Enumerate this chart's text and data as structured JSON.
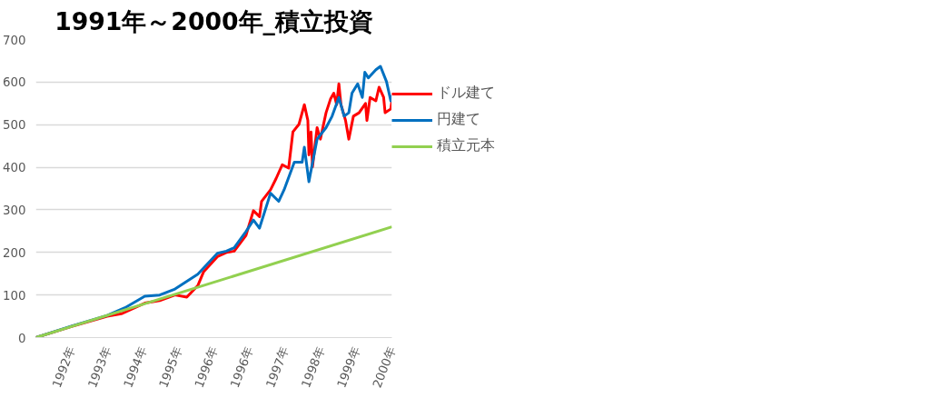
{
  "chart_data": {
    "type": "line",
    "title": "1991年～2000年_積立投資",
    "xlim": [
      "1991-02-06",
      "2000-11-24"
    ],
    "xticks": [
      {
        "value": "1992-01-30",
        "label": "1992年"
      },
      {
        "value": "1993-01-23",
        "label": "1993年"
      },
      {
        "value": "1994-01-16",
        "label": "1994年"
      },
      {
        "value": "1995-01-08",
        "label": "1995年"
      },
      {
        "value": "1996-01-01",
        "label": "1996年"
      },
      {
        "value": "1996-12-24",
        "label": "1996年"
      },
      {
        "value": "1997-12-17",
        "label": "1997年"
      },
      {
        "value": "1998-12-09",
        "label": "1998年"
      },
      {
        "value": "1999-12-02",
        "label": "1999年"
      },
      {
        "value": "2000-11-24",
        "label": "2000年"
      }
    ],
    "ylim": [
      0,
      700
    ],
    "yticks": [
      0,
      100,
      200,
      300,
      400,
      500,
      600,
      700
    ],
    "grid": "y",
    "legend": "right",
    "marker": "none",
    "line_style": "solid",
    "series": [
      {
        "name": "ドル建て",
        "color": "#ff0000",
        "x": [
          "1991-02-06",
          "1992-01-30",
          "1993-01-23",
          "1993-06-14",
          "1994-02-05",
          "1994-07-05",
          "1994-12-06",
          "1995-04-03",
          "1995-07-23",
          "1995-09-18",
          "1996-02-05",
          "1996-05-05",
          "1996-07-23",
          "1996-11-18",
          "1997-02-01",
          "1997-04-03",
          "1997-04-24",
          "1997-07-23",
          "1997-09-18",
          "1997-11-18",
          "1998-01-21",
          "1998-03-05",
          "1998-05-05",
          "1998-06-28",
          "1998-08-02",
          "1998-08-13",
          "1998-09-03",
          "1998-09-18",
          "1998-11-03",
          "1998-12-06",
          "1999-02-01",
          "1999-03-19",
          "1999-04-20",
          "1999-05-19",
          "1999-06-10",
          "1999-07-01",
          "1999-08-16",
          "1999-09-18",
          "1999-11-03",
          "1999-12-30",
          "2000-03-04",
          "2000-03-18",
          "2000-04-19",
          "2000-06-16",
          "2000-07-18",
          "2000-09-02",
          "2000-09-17",
          "2000-11-13",
          "2000-11-24"
        ],
        "values": [
          0,
          26,
          50,
          56,
          81,
          87,
          100,
          95,
          122,
          154,
          190,
          200,
          203,
          240,
          298,
          284,
          320,
          347,
          374,
          406,
          398,
          483,
          501,
          547,
          510,
          429,
          483,
          401,
          493,
          466,
          528,
          561,
          574,
          547,
          596,
          547,
          510,
          466,
          520,
          528,
          550,
          510,
          564,
          556,
          588,
          564,
          528,
          537,
          556
        ]
      },
      {
        "name": "円建て",
        "color": "#0070c0",
        "x": [
          "1991-02-06",
          "1992-01-30",
          "1993-01-23",
          "1993-07-20",
          "1994-02-05",
          "1994-07-05",
          "1994-12-06",
          "1995-07-23",
          "1996-02-05",
          "1996-05-05",
          "1996-07-23",
          "1996-11-18",
          "1997-02-01",
          "1997-04-03",
          "1997-07-23",
          "1997-10-13",
          "1997-12-06",
          "1998-03-19",
          "1998-06-06",
          "1998-06-28",
          "1998-08-13",
          "1998-08-24",
          "1998-11-03",
          "1999-02-01",
          "1999-04-03",
          "1999-06-10",
          "1999-08-02",
          "1999-09-18",
          "1999-10-20",
          "1999-12-16",
          "2000-02-01",
          "2000-02-26",
          "2000-04-01",
          "2000-06-16",
          "2000-08-01",
          "2000-10-01",
          "2000-11-13",
          "2000-11-24"
        ],
        "values": [
          0,
          27,
          52,
          70,
          97,
          100,
          114,
          149,
          198,
          203,
          211,
          249,
          276,
          257,
          339,
          320,
          347,
          412,
          412,
          447,
          366,
          380,
          466,
          493,
          520,
          564,
          520,
          528,
          574,
          596,
          564,
          623,
          610,
          629,
          637,
          601,
          556,
          569
        ]
      },
      {
        "name": "積立元本",
        "color": "#92d050",
        "x": [
          "1991-02-06",
          "2000-11-24"
        ],
        "values": [
          0,
          260
        ]
      }
    ]
  }
}
